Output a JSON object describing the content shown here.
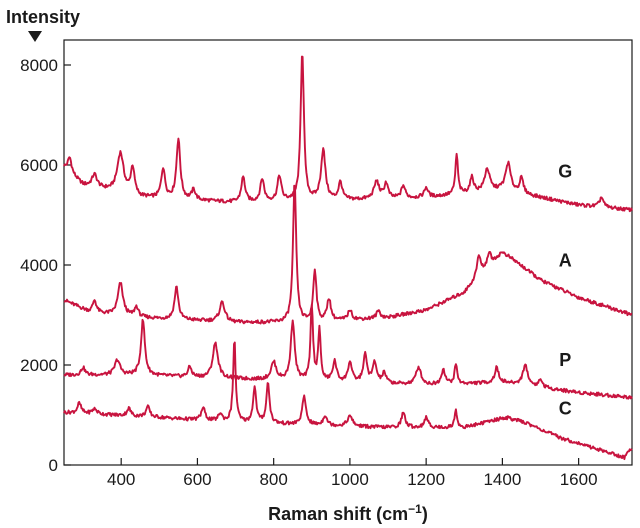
{
  "chart_data": {
    "type": "line",
    "title": "",
    "ylabel": "Intensity",
    "xlabel": "Raman shift (cm",
    "xlabel_superscript": "−1",
    "xlabel_suffix": ")",
    "xlim": [
      250,
      1740
    ],
    "ylim": [
      0,
      8500
    ],
    "xticks": [
      400,
      600,
      800,
      1000,
      1200,
      1400,
      1600
    ],
    "yticks": [
      0,
      2000,
      4000,
      6000,
      8000
    ],
    "grid": false,
    "line_color": "#c8143f",
    "series": [
      {
        "name": "G",
        "baseline": [
          [
            250,
            5950
          ],
          [
            300,
            5600
          ],
          [
            450,
            5350
          ],
          [
            700,
            5250
          ],
          [
            1000,
            5300
          ],
          [
            1200,
            5350
          ],
          [
            1400,
            5500
          ],
          [
            1500,
            5350
          ],
          [
            1600,
            5200
          ],
          [
            1740,
            5100
          ]
        ],
        "peaks": [
          [
            265,
            300,
            6
          ],
          [
            330,
            250,
            8
          ],
          [
            398,
            800,
            10
          ],
          [
            430,
            550,
            6
          ],
          [
            510,
            600,
            6
          ],
          [
            550,
            1200,
            6
          ],
          [
            590,
            200,
            6
          ],
          [
            720,
            500,
            6
          ],
          [
            770,
            450,
            6
          ],
          [
            815,
            500,
            6
          ],
          [
            875,
            3000,
            5
          ],
          [
            930,
            1000,
            7
          ],
          [
            975,
            350,
            6
          ],
          [
            1070,
            350,
            8
          ],
          [
            1095,
            300,
            6
          ],
          [
            1140,
            250,
            6
          ],
          [
            1200,
            200,
            6
          ],
          [
            1280,
            800,
            4
          ],
          [
            1320,
            300,
            6
          ],
          [
            1360,
            450,
            8
          ],
          [
            1415,
            550,
            8
          ],
          [
            1450,
            300,
            6
          ],
          [
            1660,
            200,
            6
          ]
        ]
      },
      {
        "name": "A",
        "baseline": [
          [
            250,
            3300
          ],
          [
            320,
            3050
          ],
          [
            450,
            2950
          ],
          [
            700,
            2850
          ],
          [
            900,
            2850
          ],
          [
            1100,
            2950
          ],
          [
            1200,
            3100
          ],
          [
            1300,
            3450
          ],
          [
            1340,
            3800
          ],
          [
            1400,
            4250
          ],
          [
            1430,
            4100
          ],
          [
            1500,
            3700
          ],
          [
            1600,
            3350
          ],
          [
            1740,
            3000
          ]
        ],
        "peaks": [
          [
            330,
            250,
            6
          ],
          [
            398,
            650,
            8
          ],
          [
            440,
            200,
            6
          ],
          [
            545,
            650,
            6
          ],
          [
            665,
            400,
            8
          ],
          [
            855,
            2800,
            5
          ],
          [
            908,
            1050,
            5
          ],
          [
            945,
            450,
            6
          ],
          [
            1000,
            200,
            6
          ],
          [
            1075,
            150,
            6
          ],
          [
            1338,
            400,
            6
          ],
          [
            1365,
            250,
            6
          ]
        ]
      },
      {
        "name": "P",
        "baseline": [
          [
            250,
            1800
          ],
          [
            450,
            1800
          ],
          [
            600,
            1750
          ],
          [
            800,
            1700
          ],
          [
            1000,
            1650
          ],
          [
            1200,
            1600
          ],
          [
            1400,
            1650
          ],
          [
            1600,
            1450
          ],
          [
            1740,
            1350
          ]
        ],
        "peaks": [
          [
            300,
            150,
            6
          ],
          [
            390,
            300,
            8
          ],
          [
            457,
            1100,
            6
          ],
          [
            580,
            200,
            6
          ],
          [
            647,
            700,
            8
          ],
          [
            800,
            350,
            8
          ],
          [
            850,
            1200,
            6
          ],
          [
            900,
            1500,
            4
          ],
          [
            920,
            1000,
            4
          ],
          [
            960,
            400,
            6
          ],
          [
            1000,
            400,
            6
          ],
          [
            1040,
            550,
            6
          ],
          [
            1065,
            400,
            6
          ],
          [
            1090,
            200,
            6
          ],
          [
            1180,
            350,
            8
          ],
          [
            1245,
            300,
            6
          ],
          [
            1278,
            400,
            4
          ],
          [
            1385,
            300,
            6
          ],
          [
            1460,
            400,
            8
          ],
          [
            1500,
            150,
            6
          ]
        ]
      },
      {
        "name": "C",
        "baseline": [
          [
            250,
            1050
          ],
          [
            500,
            950
          ],
          [
            700,
            850
          ],
          [
            900,
            800
          ],
          [
            1100,
            750
          ],
          [
            1300,
            750
          ],
          [
            1380,
            900
          ],
          [
            1410,
            950
          ],
          [
            1460,
            850
          ],
          [
            1550,
            550
          ],
          [
            1700,
            200
          ],
          [
            1720,
            150
          ],
          [
            1740,
            350
          ]
        ],
        "peaks": [
          [
            290,
            200,
            6
          ],
          [
            330,
            100,
            8
          ],
          [
            420,
            150,
            6
          ],
          [
            470,
            200,
            6
          ],
          [
            615,
            250,
            6
          ],
          [
            660,
            150,
            6
          ],
          [
            697,
            1650,
            4
          ],
          [
            750,
            700,
            5
          ],
          [
            785,
            800,
            5
          ],
          [
            880,
            550,
            6
          ],
          [
            935,
            200,
            6
          ],
          [
            1000,
            200,
            8
          ],
          [
            1140,
            300,
            6
          ],
          [
            1200,
            200,
            6
          ],
          [
            1278,
            350,
            4
          ]
        ]
      }
    ]
  }
}
